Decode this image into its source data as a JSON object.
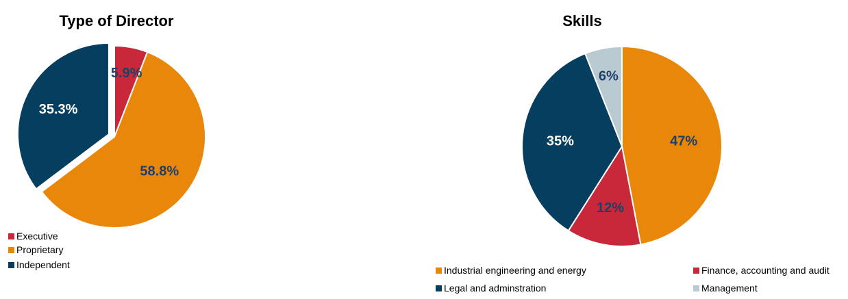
{
  "chart_data": [
    {
      "type": "pie",
      "title": "Type of Director",
      "slices": [
        {
          "name": "Executive",
          "value": 5.9,
          "label": "5.9%",
          "color": "#c8283a",
          "label_color": "#1f3f66"
        },
        {
          "name": "Proprietary",
          "value": 58.8,
          "label": "58.8%",
          "color": "#e8870a",
          "label_color": "#1f3f66"
        },
        {
          "name": "Independent",
          "value": 35.3,
          "label": "35.3%",
          "color": "#063e5f",
          "label_color": "#ffffff",
          "exploded": true
        }
      ],
      "legend": [
        "Executive",
        "Proprietary",
        "Independent"
      ],
      "legend_position": "bottom-left"
    },
    {
      "type": "pie",
      "title": "Skills",
      "slices": [
        {
          "name": "Industrial engineering and energy",
          "value": 47,
          "label": "47%",
          "color": "#e8870a",
          "label_color": "#1f3f66"
        },
        {
          "name": "Finance, accounting and audit",
          "value": 12,
          "label": "12%",
          "color": "#c8283a",
          "label_color": "#1f3f66"
        },
        {
          "name": "Legal and adminstration",
          "value": 35,
          "label": "35%",
          "color": "#063e5f",
          "label_color": "#ffffff"
        },
        {
          "name": "Management",
          "value": 6,
          "label": "6%",
          "color": "#b9cad3",
          "label_color": "#1f3f66"
        }
      ],
      "legend": [
        "Industrial engineering and energy",
        "Finance, accounting and audit",
        "Legal and adminstration",
        "Management"
      ],
      "legend_position": "bottom"
    }
  ]
}
